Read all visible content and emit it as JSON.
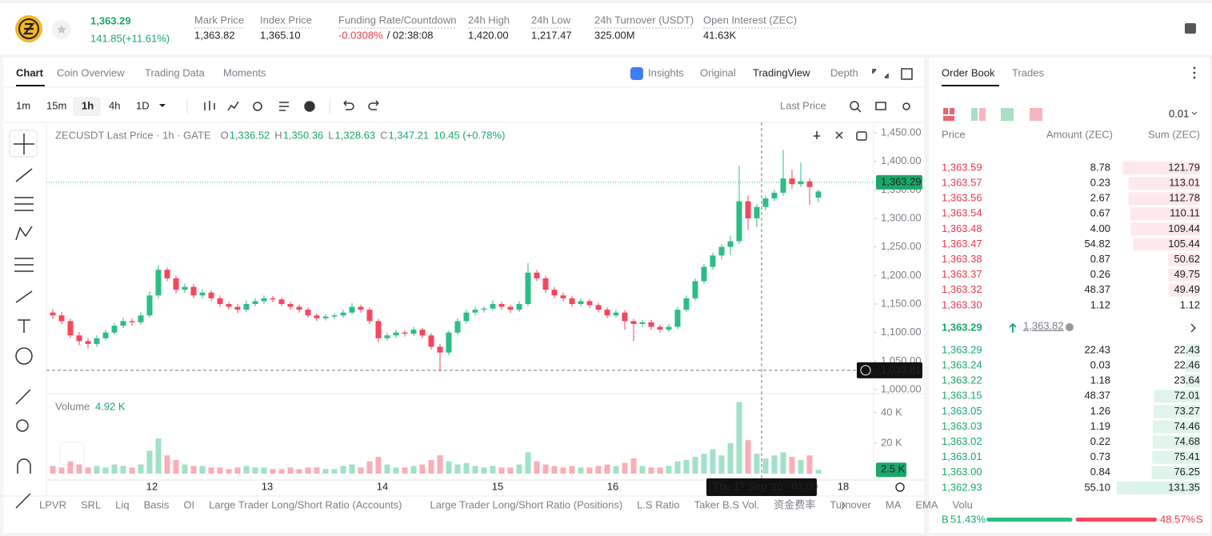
{
  "header": {
    "last_price": "1,363.29",
    "change": "141.85(+11.61%)",
    "stats": [
      {
        "label": "Mark Price",
        "value": "1,363.82"
      },
      {
        "label": "Index Price",
        "value": "1,365.10"
      },
      {
        "label": "Funding Rate/Countdown",
        "value": "-0.0308%",
        "extra": "/ 02:38:08"
      },
      {
        "label": "24h High",
        "value": "1,420.00"
      },
      {
        "label": "24h Low",
        "value": "1,217.47"
      },
      {
        "label": "24h Turnover (USDT)",
        "value": "325.00M"
      },
      {
        "label": "Open Interest (ZEC)",
        "value": "41.63K"
      }
    ]
  },
  "chart_tabs": [
    "Chart",
    "Coin Overview",
    "Trading Data",
    "Moments"
  ],
  "view_tabs": [
    "Insights",
    "Original",
    "TradingView",
    "Depth"
  ],
  "intervals": [
    "1m",
    "15m",
    "1h",
    "4h",
    "1D"
  ],
  "price_source": "Last Price",
  "chart_data": {
    "type": "candlestick",
    "title": "ZECUSDT Last Price · 1h · GATE",
    "legend": [
      {
        "label": "O",
        "value": "1,336.52"
      },
      {
        "label": "H",
        "value": "1,350.36"
      },
      {
        "label": "L",
        "value": "1,328.63"
      },
      {
        "label": "C",
        "value": "1,347.21"
      }
    ],
    "legend_change": "10.45 (+0.78%)",
    "up_color": "#2ebd85",
    "down_color": "#f6465d",
    "candles": [
      [
        1135,
        1141,
        1124,
        1130
      ],
      [
        1130,
        1136,
        1114,
        1120
      ],
      [
        1120,
        1124,
        1090,
        1095
      ],
      [
        1095,
        1101,
        1078,
        1085
      ],
      [
        1085,
        1090,
        1072,
        1080
      ],
      [
        1080,
        1095,
        1075,
        1090
      ],
      [
        1090,
        1105,
        1086,
        1100
      ],
      [
        1100,
        1117,
        1096,
        1112
      ],
      [
        1112,
        1126,
        1108,
        1120
      ],
      [
        1120,
        1125,
        1112,
        1118
      ],
      [
        1118,
        1136,
        1114,
        1130
      ],
      [
        1130,
        1172,
        1126,
        1165
      ],
      [
        1165,
        1218,
        1160,
        1210
      ],
      [
        1210,
        1214,
        1190,
        1195
      ],
      [
        1195,
        1200,
        1168,
        1175
      ],
      [
        1175,
        1186,
        1170,
        1180
      ],
      [
        1180,
        1185,
        1160,
        1165
      ],
      [
        1165,
        1176,
        1160,
        1170
      ],
      [
        1170,
        1174,
        1155,
        1160
      ],
      [
        1160,
        1165,
        1145,
        1150
      ],
      [
        1150,
        1154,
        1140,
        1145
      ],
      [
        1145,
        1150,
        1134,
        1140
      ],
      [
        1140,
        1156,
        1136,
        1150
      ],
      [
        1150,
        1160,
        1146,
        1155
      ],
      [
        1155,
        1165,
        1150,
        1160
      ],
      [
        1160,
        1164,
        1153,
        1158
      ],
      [
        1158,
        1162,
        1146,
        1150
      ],
      [
        1150,
        1154,
        1140,
        1145
      ],
      [
        1145,
        1149,
        1135,
        1140
      ],
      [
        1140,
        1144,
        1126,
        1130
      ],
      [
        1130,
        1134,
        1120,
        1125
      ],
      [
        1125,
        1132,
        1121,
        1128
      ],
      [
        1128,
        1134,
        1124,
        1130
      ],
      [
        1130,
        1140,
        1126,
        1135
      ],
      [
        1135,
        1152,
        1131,
        1145
      ],
      [
        1145,
        1149,
        1135,
        1140
      ],
      [
        1140,
        1144,
        1115,
        1120
      ],
      [
        1120,
        1124,
        1082,
        1090
      ],
      [
        1090,
        1100,
        1086,
        1095
      ],
      [
        1095,
        1105,
        1090,
        1100
      ],
      [
        1100,
        1104,
        1093,
        1098
      ],
      [
        1098,
        1110,
        1094,
        1105
      ],
      [
        1105,
        1108,
        1090,
        1095
      ],
      [
        1095,
        1099,
        1070,
        1075
      ],
      [
        1075,
        1080,
        1032,
        1065
      ],
      [
        1065,
        1104,
        1060,
        1100
      ],
      [
        1100,
        1125,
        1096,
        1120
      ],
      [
        1120,
        1140,
        1116,
        1135
      ],
      [
        1135,
        1145,
        1130,
        1140
      ],
      [
        1140,
        1146,
        1135,
        1142
      ],
      [
        1142,
        1156,
        1138,
        1150
      ],
      [
        1150,
        1154,
        1140,
        1145
      ],
      [
        1145,
        1149,
        1134,
        1140
      ],
      [
        1140,
        1155,
        1136,
        1150
      ],
      [
        1150,
        1222,
        1146,
        1205
      ],
      [
        1205,
        1210,
        1190,
        1195
      ],
      [
        1195,
        1199,
        1170,
        1175
      ],
      [
        1175,
        1180,
        1160,
        1165
      ],
      [
        1165,
        1170,
        1155,
        1160
      ],
      [
        1160,
        1164,
        1145,
        1150
      ],
      [
        1150,
        1160,
        1146,
        1155
      ],
      [
        1155,
        1159,
        1143,
        1148
      ],
      [
        1148,
        1152,
        1135,
        1140
      ],
      [
        1140,
        1144,
        1125,
        1130
      ],
      [
        1130,
        1140,
        1126,
        1135
      ],
      [
        1135,
        1139,
        1105,
        1120
      ],
      [
        1120,
        1124,
        1085,
        1115
      ],
      [
        1115,
        1122,
        1110,
        1118
      ],
      [
        1118,
        1122,
        1105,
        1110
      ],
      [
        1110,
        1114,
        1100,
        1105
      ],
      [
        1105,
        1115,
        1101,
        1110
      ],
      [
        1110,
        1145,
        1106,
        1140
      ],
      [
        1140,
        1165,
        1136,
        1160
      ],
      [
        1160,
        1195,
        1156,
        1190
      ],
      [
        1190,
        1220,
        1186,
        1215
      ],
      [
        1215,
        1240,
        1210,
        1235
      ],
      [
        1235,
        1255,
        1228,
        1250
      ],
      [
        1250,
        1270,
        1236,
        1260
      ],
      [
        1260,
        1392,
        1255,
        1330
      ],
      [
        1330,
        1340,
        1280,
        1300
      ],
      [
        1300,
        1325,
        1285,
        1320
      ],
      [
        1320,
        1340,
        1314,
        1335
      ],
      [
        1335,
        1350,
        1330,
        1345
      ],
      [
        1345,
        1420,
        1340,
        1370
      ],
      [
        1370,
        1385,
        1352,
        1360
      ],
      [
        1360,
        1398,
        1355,
        1365
      ],
      [
        1365,
        1370,
        1324,
        1355
      ],
      [
        1336.52,
        1350.36,
        1328.63,
        1347.21
      ]
    ],
    "volumes": [
      5,
      4,
      8,
      6,
      4,
      5,
      4,
      6,
      5,
      4,
      6,
      15,
      23,
      12,
      9,
      6,
      5,
      5,
      4,
      4,
      3,
      4,
      5,
      4,
      4,
      3,
      3,
      4,
      3,
      4,
      4,
      3,
      3,
      5,
      6,
      4,
      8,
      11,
      6,
      4,
      4,
      5,
      6,
      9,
      12,
      8,
      6,
      7,
      5,
      4,
      5,
      4,
      4,
      6,
      14,
      8,
      6,
      5,
      4,
      5,
      4,
      4,
      5,
      6,
      5,
      7,
      10,
      5,
      4,
      4,
      5,
      8,
      9,
      11,
      13,
      16,
      12,
      20,
      47,
      22,
      13,
      10,
      12,
      14,
      11,
      9,
      12,
      2.5
    ],
    "ylim": [
      1000,
      1450
    ],
    "yticks": [
      {
        "value": 1450,
        "label": "1,450.00"
      },
      {
        "value": 1400,
        "label": "1,400.00"
      },
      {
        "value": 1350,
        "label": "1,350.00"
      },
      {
        "value": 1300,
        "label": "1,300.00"
      },
      {
        "value": 1250,
        "label": "1,250.00"
      },
      {
        "value": 1200,
        "label": "1,200.00"
      },
      {
        "value": 1150,
        "label": "1,150.00"
      },
      {
        "value": 1100,
        "label": "1,100.00"
      },
      {
        "value": 1050,
        "label": "1,050.00"
      },
      {
        "value": 1000,
        "label": "1,000.00"
      }
    ],
    "volume_title": "Volume",
    "volume_value": "4.92 K",
    "volume_ylim": [
      0,
      52
    ],
    "volume_ticks": [
      {
        "value": 40,
        "label": "40 K"
      },
      {
        "value": 20,
        "label": "20 K"
      }
    ],
    "last_price": {
      "value": 1363.29,
      "label": "1,363.29"
    },
    "crosshair_price": {
      "value": 1033.81,
      "label": "1,033.81"
    },
    "last_volume": {
      "value": 2.5,
      "label": "2.5 K"
    },
    "crosshair_time": "Thu 17 Sep '26   07:00",
    "x_labels": [
      "12",
      "13",
      "14",
      "15",
      "16",
      "18"
    ]
  },
  "indicators": [
    "LPVR",
    "SRL",
    "Liq",
    "Basis",
    "OI",
    "Large Trader Long/Short Ratio (Accounts)",
    "Large Trader Long/Short Ratio (Positions)",
    "L.S Ratio",
    "Taker B.S Vol.",
    "资金费率",
    "Turnover",
    "MA",
    "EMA",
    "Volu"
  ],
  "order_book": {
    "tabs": [
      "Order Book",
      "Trades"
    ],
    "precision": "0.01",
    "columns": [
      "Price",
      "Amount (ZEC)",
      "Sum (ZEC)"
    ],
    "asks": [
      {
        "price": "1,363.59",
        "amount": "8.78",
        "sum": 121.79
      },
      {
        "price": "1,363.57",
        "amount": "0.23",
        "sum": 113.01
      },
      {
        "price": "1,363.56",
        "amount": "2.67",
        "sum": 112.78
      },
      {
        "price": "1,363.54",
        "amount": "0.67",
        "sum": 110.11
      },
      {
        "price": "1,363.48",
        "amount": "4.00",
        "sum": 109.44
      },
      {
        "price": "1,363.47",
        "amount": "54.82",
        "sum": 105.44
      },
      {
        "price": "1,363.38",
        "amount": "0.87",
        "sum": 50.62
      },
      {
        "price": "1,363.37",
        "amount": "0.26",
        "sum": 49.75
      },
      {
        "price": "1,363.32",
        "amount": "48.37",
        "sum": 49.49
      },
      {
        "price": "1,363.30",
        "amount": "1.12",
        "sum": 1.12
      }
    ],
    "mid_price": "1,363.29",
    "mark_price": "1,363.82",
    "bids": [
      {
        "price": "1,363.29",
        "amount": "22.43",
        "sum": 22.43
      },
      {
        "price": "1,363.24",
        "amount": "0.03",
        "sum": 22.46
      },
      {
        "price": "1,363.22",
        "amount": "1.18",
        "sum": 23.64
      },
      {
        "price": "1,363.15",
        "amount": "48.37",
        "sum": 72.01
      },
      {
        "price": "1,363.05",
        "amount": "1.26",
        "sum": 73.27
      },
      {
        "price": "1,363.03",
        "amount": "1.19",
        "sum": 74.46
      },
      {
        "price": "1,363.02",
        "amount": "0.22",
        "sum": 74.68
      },
      {
        "price": "1,363.01",
        "amount": "0.73",
        "sum": 75.41
      },
      {
        "price": "1,363.00",
        "amount": "0.84",
        "sum": 76.25
      },
      {
        "price": "1,362.93",
        "amount": "55.10",
        "sum": 131.35
      }
    ],
    "buy_label": "B",
    "buy_ratio": 51.43,
    "buy_ratio_label": "51.43%",
    "sell_ratio": 48.57,
    "sell_ratio_label": "48.57%",
    "sell_label": "S"
  }
}
